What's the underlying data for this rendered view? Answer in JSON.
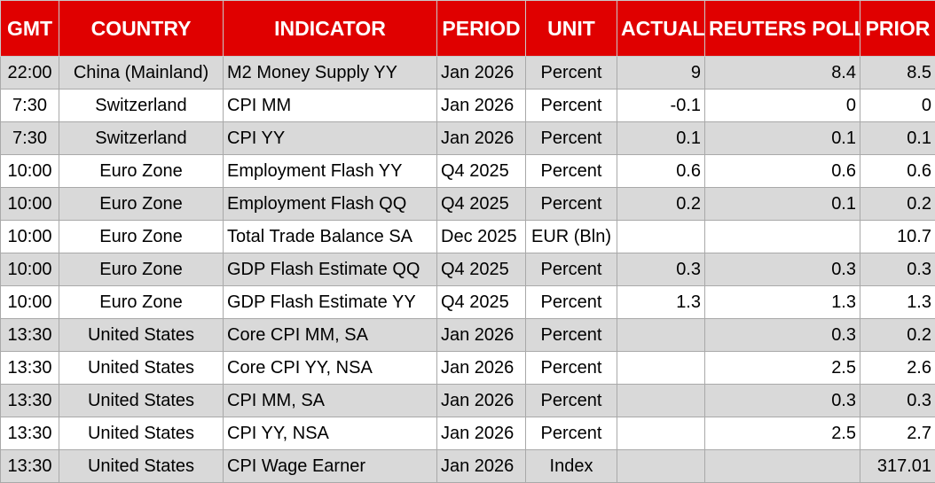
{
  "headers": {
    "gmt": "GMT",
    "country": "COUNTRY",
    "indicator": "INDICATOR",
    "period": "PERIOD",
    "unit": "UNIT",
    "actual": "ACTUAL",
    "poll": "REUTERS POLL",
    "prior": "PRIOR"
  },
  "colors": {
    "header_bg": "#e00000",
    "header_text": "#ffffff",
    "row_shade": "#d9d9d9",
    "row_plain": "#ffffff"
  },
  "rows": [
    {
      "gmt": "22:00",
      "country": "China (Mainland)",
      "indicator": "M2 Money Supply YY",
      "period": "Jan 2026",
      "unit": "Percent",
      "actual": "9",
      "poll": "8.4",
      "prior": "8.5"
    },
    {
      "gmt": "7:30",
      "country": "Switzerland",
      "indicator": "CPI MM",
      "period": "Jan 2026",
      "unit": "Percent",
      "actual": "-0.1",
      "poll": "0",
      "prior": "0"
    },
    {
      "gmt": "7:30",
      "country": "Switzerland",
      "indicator": "CPI YY",
      "period": "Jan 2026",
      "unit": "Percent",
      "actual": "0.1",
      "poll": "0.1",
      "prior": "0.1"
    },
    {
      "gmt": "10:00",
      "country": "Euro Zone",
      "indicator": "Employment Flash YY",
      "period": "Q4 2025",
      "unit": "Percent",
      "actual": "0.6",
      "poll": "0.6",
      "prior": "0.6"
    },
    {
      "gmt": "10:00",
      "country": "Euro Zone",
      "indicator": "Employment Flash QQ",
      "period": "Q4 2025",
      "unit": "Percent",
      "actual": "0.2",
      "poll": "0.1",
      "prior": "0.2"
    },
    {
      "gmt": "10:00",
      "country": "Euro Zone",
      "indicator": "Total Trade Balance SA",
      "period": "Dec 2025",
      "unit": "EUR (Bln)",
      "actual": "",
      "poll": "",
      "prior": "10.7"
    },
    {
      "gmt": "10:00",
      "country": "Euro Zone",
      "indicator": "GDP Flash Estimate QQ",
      "period": "Q4 2025",
      "unit": "Percent",
      "actual": "0.3",
      "poll": "0.3",
      "prior": "0.3"
    },
    {
      "gmt": "10:00",
      "country": "Euro Zone",
      "indicator": "GDP Flash Estimate YY",
      "period": "Q4 2025",
      "unit": "Percent",
      "actual": "1.3",
      "poll": "1.3",
      "prior": "1.3"
    },
    {
      "gmt": "13:30",
      "country": "United States",
      "indicator": "Core CPI MM, SA",
      "period": "Jan 2026",
      "unit": "Percent",
      "actual": "",
      "poll": "0.3",
      "prior": "0.2"
    },
    {
      "gmt": "13:30",
      "country": "United States",
      "indicator": "Core CPI YY, NSA",
      "period": "Jan 2026",
      "unit": "Percent",
      "actual": "",
      "poll": "2.5",
      "prior": "2.6"
    },
    {
      "gmt": "13:30",
      "country": "United States",
      "indicator": "CPI MM, SA",
      "period": "Jan 2026",
      "unit": "Percent",
      "actual": "",
      "poll": "0.3",
      "prior": "0.3"
    },
    {
      "gmt": "13:30",
      "country": "United States",
      "indicator": "CPI YY, NSA",
      "period": "Jan 2026",
      "unit": "Percent",
      "actual": "",
      "poll": "2.5",
      "prior": "2.7"
    },
    {
      "gmt": "13:30",
      "country": "United States",
      "indicator": "CPI Wage Earner",
      "period": "Jan 2026",
      "unit": "Index",
      "actual": "",
      "poll": "",
      "prior": "317.01"
    }
  ]
}
